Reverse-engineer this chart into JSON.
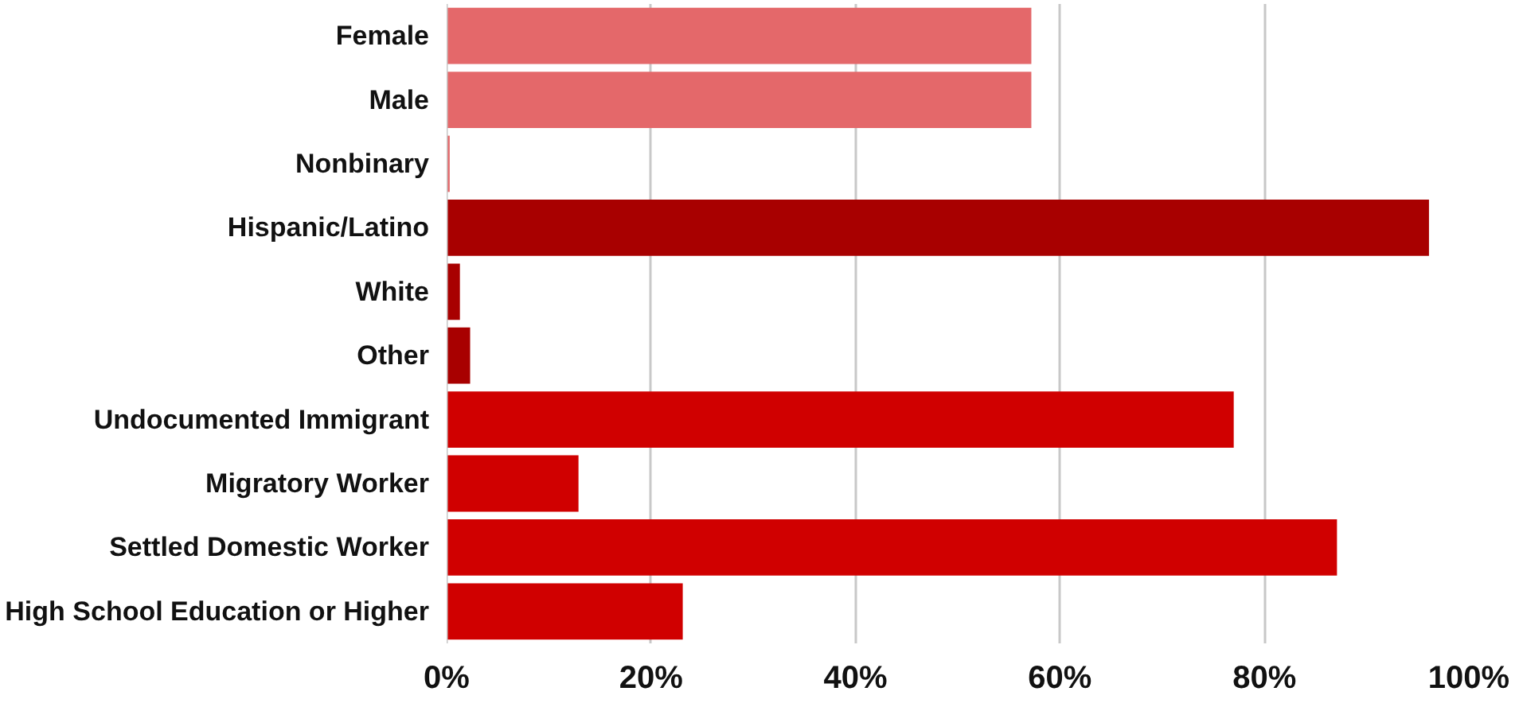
{
  "chart_data": {
    "type": "bar",
    "orientation": "horizontal",
    "categories": [
      "Female",
      "Male",
      "Nonbinary",
      "Hispanic/Latino",
      "White",
      "Other",
      "Undocumented Immigrant",
      "Migratory Worker",
      "Settled Domestic Worker",
      "High School Education or Higher"
    ],
    "values": [
      57.2,
      57.2,
      0.3,
      96.1,
      1.3,
      2.3,
      77.0,
      12.9,
      87.1,
      23.1
    ],
    "colors": [
      "#e4686a",
      "#e4686a",
      "#e4686a",
      "#a80000",
      "#a80000",
      "#a80000",
      "#d00000",
      "#d00000",
      "#d00000",
      "#d00000"
    ],
    "xlim": [
      0,
      100
    ],
    "xticks": [
      {
        "value": 0,
        "label": "0%"
      },
      {
        "value": 20,
        "label": "20%"
      },
      {
        "value": 40,
        "label": "40%"
      },
      {
        "value": 60,
        "label": "60%"
      },
      {
        "value": 80,
        "label": "80%"
      },
      {
        "value": 100,
        "label": "100%"
      }
    ],
    "grid": "x"
  }
}
